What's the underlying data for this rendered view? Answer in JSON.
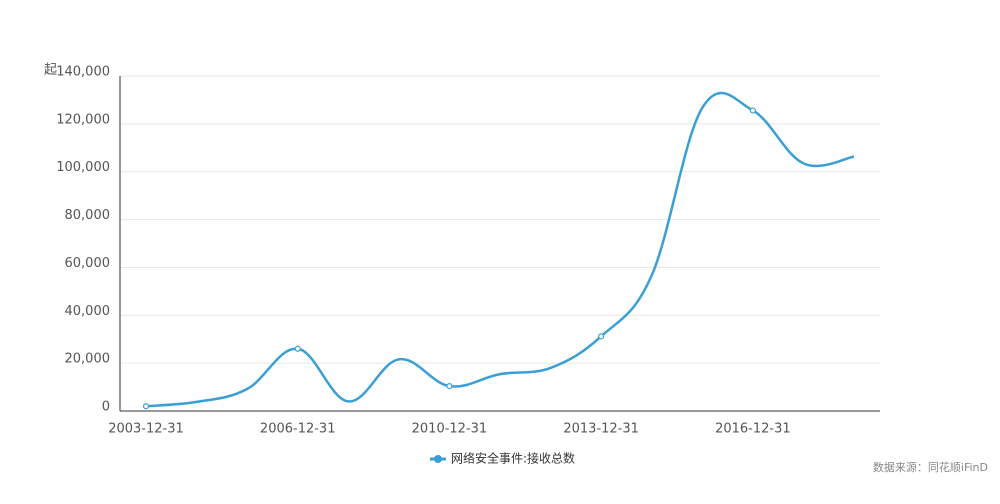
{
  "chart_data": {
    "type": "line",
    "y_unit": "起",
    "categories": [
      "2003-12-31",
      null,
      null,
      "2006-12-31",
      null,
      null,
      "2010-12-31",
      null,
      null,
      "2013-12-31",
      null,
      null,
      "2016-12-31",
      null,
      null
    ],
    "series": [
      {
        "name": "网络安全事件:接收总数",
        "color": "#3a9fd6",
        "values": [
          2000,
          3800,
          9200,
          26000,
          4000,
          21600,
          10400,
          15400,
          18000,
          31200,
          56700,
          126700,
          125600,
          103500,
          106300
        ]
      }
    ],
    "ylim": [
      0,
      140000
    ],
    "yticks": [
      0,
      {
        "value": 20000,
        "label": "20,000"
      },
      {
        "value": 40000,
        "label": "40,000"
      },
      {
        "value": 60000,
        "label": "60,000"
      },
      {
        "value": 80000,
        "label": "80,000"
      },
      {
        "value": 100000,
        "label": "100,000"
      },
      {
        "value": 120000,
        "label": "120,000"
      },
      {
        "value": 140000,
        "label": "140,000"
      }
    ],
    "grid": true,
    "legend": "bottom",
    "source": "数据来源：同花顺iFinD"
  }
}
